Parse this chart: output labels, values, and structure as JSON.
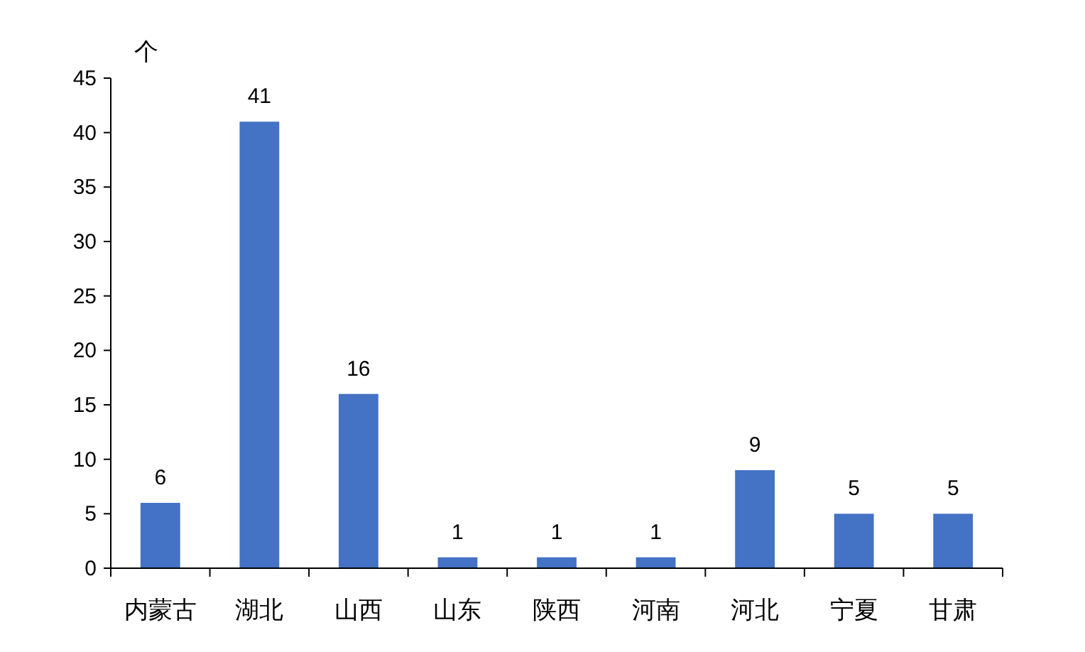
{
  "chart_data": {
    "type": "bar",
    "ylabel": "个",
    "categories": [
      "内蒙古",
      "湖北",
      "山西",
      "山东",
      "陕西",
      "河南",
      "河北",
      "宁夏",
      "甘肃"
    ],
    "values": [
      6,
      41,
      16,
      1,
      1,
      1,
      9,
      5,
      5
    ],
    "color": "#4472c4",
    "ylim": [
      0,
      45
    ],
    "yticks": [
      0,
      5,
      10,
      15,
      20,
      25,
      30,
      35,
      40,
      45
    ],
    "data_labels": true,
    "grid": false
  }
}
